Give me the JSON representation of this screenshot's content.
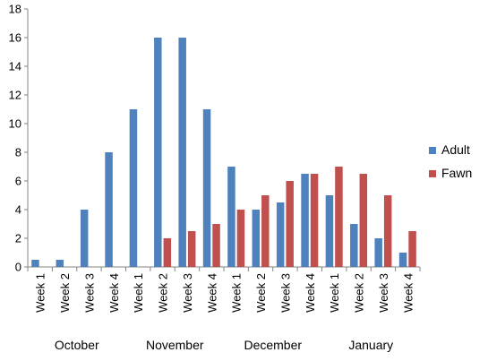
{
  "chart_data": {
    "type": "bar",
    "categories": [
      "Week 1",
      "Week 2",
      "Week 3",
      "Week 4",
      "Week 1",
      "Week 2",
      "Week 3",
      "Week 4",
      "Week 1",
      "Week 2",
      "Week 3",
      "Week 4",
      "Week 1",
      "Week 2",
      "Week 3",
      "Week 4"
    ],
    "groups": [
      {
        "label": "October",
        "count": 4
      },
      {
        "label": "November",
        "count": 4
      },
      {
        "label": "December",
        "count": 4
      },
      {
        "label": "January",
        "count": 4
      }
    ],
    "series": [
      {
        "name": "Adult",
        "color": "#4F81BD",
        "values": [
          0.5,
          0.5,
          4,
          8,
          11,
          16,
          16,
          11,
          7,
          4,
          4.5,
          6.5,
          5,
          3,
          2,
          1
        ]
      },
      {
        "name": "Fawn",
        "color": "#C0504D",
        "values": [
          0,
          0,
          0,
          0,
          0,
          2,
          2.5,
          3,
          4,
          5,
          6,
          6.5,
          7,
          6.5,
          5,
          2.5
        ]
      }
    ],
    "ylim": [
      0,
      18
    ],
    "yticks": [
      0,
      2,
      4,
      6,
      8,
      10,
      12,
      14,
      16,
      18
    ],
    "grid": false,
    "legend": "right",
    "title": "",
    "xlabel": "",
    "ylabel": ""
  }
}
